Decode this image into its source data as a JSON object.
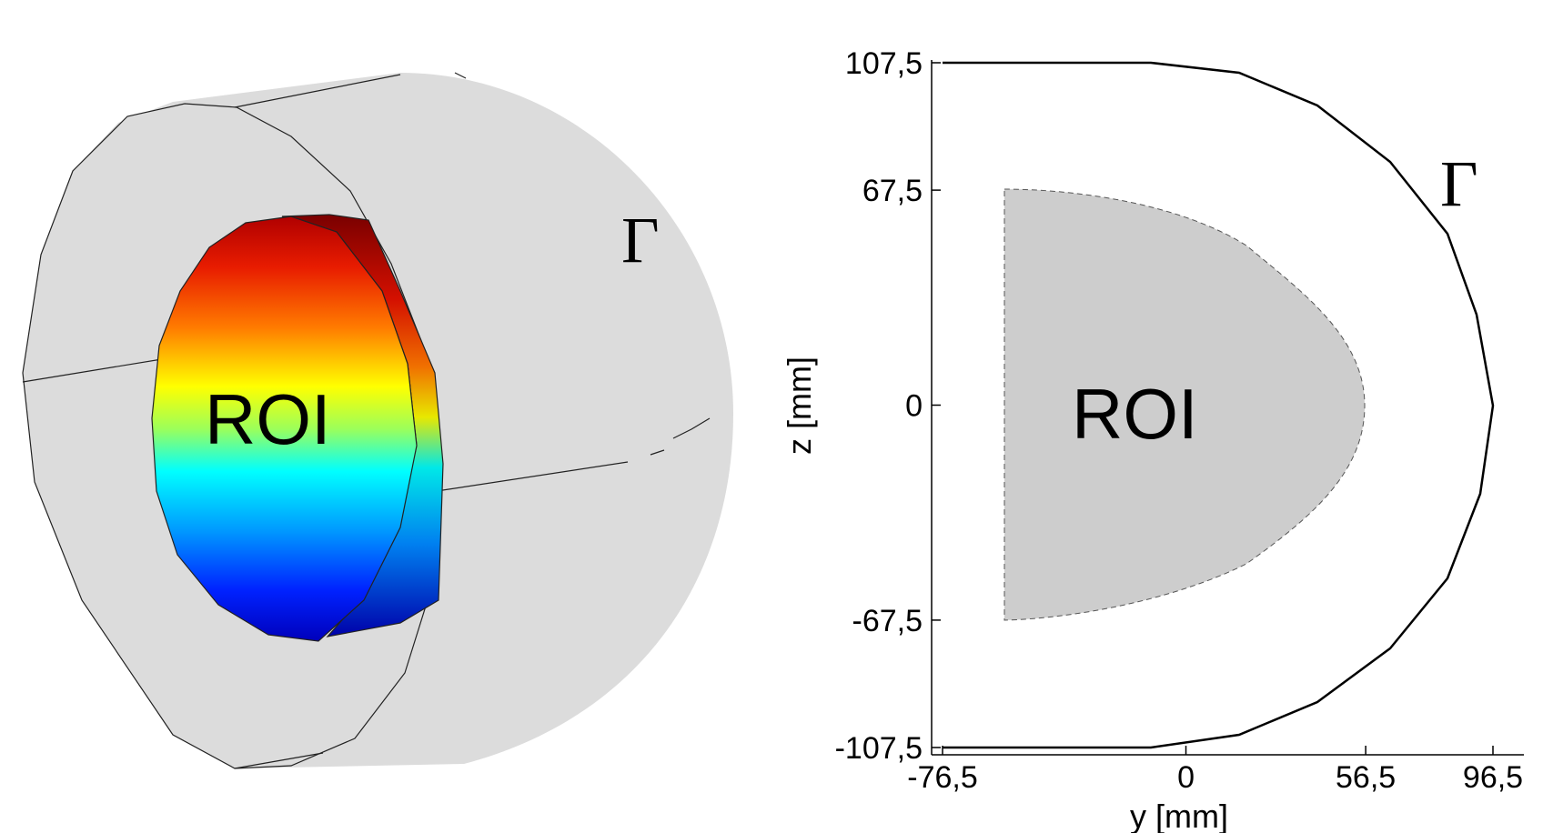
{
  "left_panel": {
    "roi_label": "ROI",
    "boundary_label": "Γ",
    "colors": {
      "cylinder": "#dcdcdc",
      "roi_top": "#8b0000",
      "roi_bottom": "#0000cc"
    }
  },
  "right_panel": {
    "roi_label": "ROI",
    "boundary_label": "Γ",
    "colors": {
      "roi_fill": "#cdcdcd",
      "boundary": "#000000"
    },
    "xlabel": "y [mm]",
    "ylabel": "z [mm]",
    "xlim": [
      -76.5,
      96.5
    ],
    "ylim": [
      -107.5,
      107.5
    ],
    "x_ticks": [
      {
        "value": -76.5,
        "label": "-76,5"
      },
      {
        "value": 0,
        "label": "0"
      },
      {
        "value": 56.5,
        "label": "56,5"
      },
      {
        "value": 96.5,
        "label": "96,5"
      }
    ],
    "y_ticks": [
      {
        "value": 107.5,
        "label": "107,5"
      },
      {
        "value": 67.5,
        "label": "67,5"
      },
      {
        "value": 0,
        "label": "0"
      },
      {
        "value": -67.5,
        "label": "-67,5"
      },
      {
        "value": -107.5,
        "label": "-107,5"
      }
    ]
  }
}
